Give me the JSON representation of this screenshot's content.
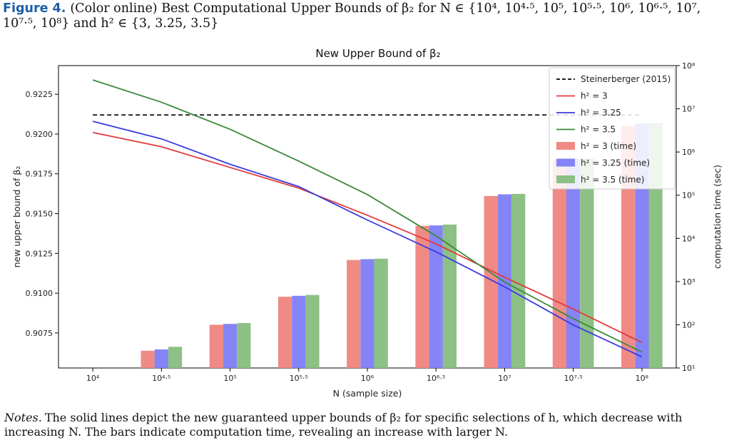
{
  "caption": {
    "figure_label": "Figure 4.",
    "text": "(Color online) Best Computational Upper Bounds of β₂ for N ∈ {10⁴, 10⁴·⁵, 10⁵, 10⁵·⁵, 10⁶, 10⁶·⁵, 10⁷, 10⁷·⁵, 10⁸} and h² ∈ {3, 3.25, 3.5}"
  },
  "notes": {
    "label": "Notes.",
    "text": "The solid lines depict the new guaranteed upper bounds of β₂ for specific selections of h, which decrease with increasing N. The bars indicate computation time, revealing an increase with larger N."
  },
  "colors": {
    "h3": "#e03a3a",
    "h325": "#3a3ae0",
    "h35": "#3a8a3a",
    "h3_bar": "#f08a84",
    "h325_bar": "#8484f6",
    "h35_bar": "#8cc084",
    "reference": "#000000"
  },
  "chart_data": {
    "type": "bar+line",
    "title": "New Upper Bound of β₂",
    "xlabel": "N (sample size)",
    "ylabel": "new upper bound of β₂",
    "y2label": "computation time (sec)",
    "categories": [
      "10⁴",
      "10⁴·⁵",
      "10⁵",
      "10⁵·⁵",
      "10⁶",
      "10⁶·⁵",
      "10⁷",
      "10⁷·⁵",
      "10⁸"
    ],
    "ylim": [
      0.9053,
      0.9243
    ],
    "yticks": [
      0.9075,
      0.91,
      0.9125,
      0.915,
      0.9175,
      0.92,
      0.9225
    ],
    "ytick_labels": [
      "0.9075",
      "0.9100",
      "0.9125",
      "0.9150",
      "0.9175",
      "0.9200",
      "0.9225"
    ],
    "y2_log_range": [
      1,
      8
    ],
    "y2ticks": [
      1,
      2,
      3,
      4,
      5,
      6,
      7,
      8
    ],
    "y2tick_labels": [
      "10¹",
      "10²",
      "10³",
      "10⁴",
      "10⁵",
      "10⁶",
      "10⁷",
      "10⁸"
    ],
    "grid": false,
    "legend_position": "top-right",
    "reference_line": {
      "name": "Steinerberger (2015)",
      "value": 0.9212
    },
    "series": [
      {
        "name": "h² = 3",
        "key": "h3",
        "values": [
          0.9201,
          0.9192,
          0.9179,
          0.9166,
          0.9149,
          0.9131,
          0.911,
          0.909,
          0.9069
        ]
      },
      {
        "name": "h² = 3.25",
        "key": "h325",
        "values": [
          0.9208,
          0.9197,
          0.9181,
          0.9167,
          0.9146,
          0.9126,
          0.9104,
          0.908,
          0.906
        ]
      },
      {
        "name": "h² = 3.5",
        "key": "h35",
        "values": [
          0.9234,
          0.922,
          0.9203,
          0.9183,
          0.9162,
          0.9136,
          0.9107,
          0.9084,
          0.9063
        ]
      }
    ],
    "bar_series": [
      {
        "name": "h² = 3 (time)",
        "key": "h3_bar",
        "log10_values": [
          null,
          1.4,
          2.0,
          2.65,
          3.5,
          4.29,
          4.98,
          5.82,
          6.61
        ]
      },
      {
        "name": "h² = 3.25 (time)",
        "key": "h325_bar",
        "log10_values": [
          null,
          1.43,
          2.02,
          2.67,
          3.52,
          4.3,
          5.02,
          5.84,
          6.66
        ]
      },
      {
        "name": "h² = 3.5 (time)",
        "key": "h35_bar",
        "log10_values": [
          null,
          1.49,
          2.04,
          2.69,
          3.53,
          4.32,
          5.03,
          5.85,
          6.67
        ]
      }
    ]
  }
}
